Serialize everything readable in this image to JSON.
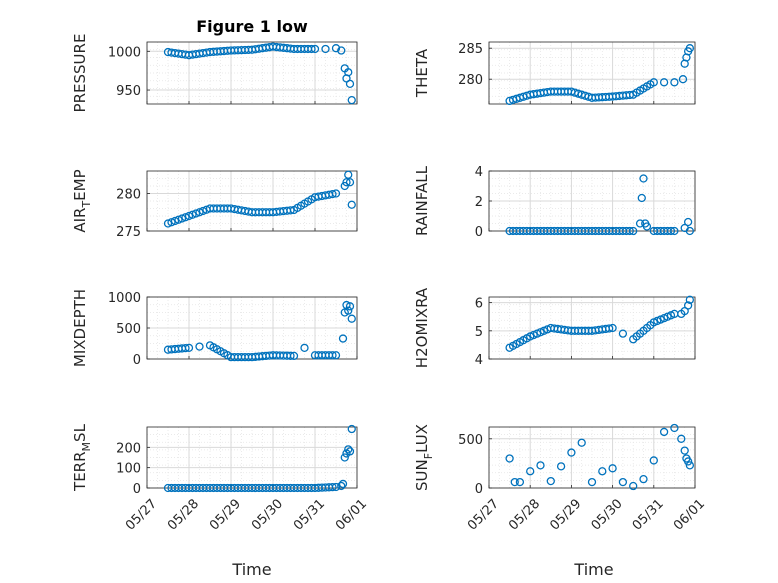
{
  "figure_title": "Figure 1 low",
  "x_axis_label": "Time",
  "colors": {
    "marker": "#0072BD",
    "axis": "#262626",
    "grid": "#d9d9d9"
  },
  "x_tick_labels": [
    "05/27",
    "05/28",
    "05/29",
    "05/30",
    "05/31",
    "06/01"
  ],
  "chart_data": [
    {
      "type": "scatter",
      "id": "pressure",
      "ylabel_main": "PRESSURE",
      "ylabel_sub": "",
      "yticks": [
        950,
        1000
      ],
      "ylim": [
        932,
        1012
      ],
      "x_domain": [
        "05/27",
        "06/01"
      ],
      "x_ticklabels_shown": false,
      "grid": true,
      "series": [
        {
          "x": [
            "2024-05-27T12:00",
            "2024-05-28T00:00",
            "2024-05-28T12:00",
            "2024-05-29T00:00",
            "2024-05-29T12:00",
            "2024-05-30T00:00",
            "2024-05-30T12:00",
            "2024-05-31T00:00",
            "2024-05-31T06:00",
            "2024-05-31T12:00",
            "2024-05-31T15:00",
            "2024-05-31T17:00",
            "2024-05-31T18:00",
            "2024-05-31T19:00",
            "2024-05-31T20:00",
            "2024-05-31T21:00"
          ],
          "y": [
            999,
            995,
            999,
            1001,
            1002,
            1006,
            1003,
            1003,
            1003,
            1004,
            1001,
            978,
            965,
            973,
            958,
            937
          ]
        }
      ]
    },
    {
      "type": "scatter",
      "id": "theta",
      "ylabel_main": "THETA",
      "ylabel_sub": "",
      "yticks": [
        280,
        285
      ],
      "ylim": [
        276,
        286
      ],
      "x_domain": [
        "05/27",
        "06/01"
      ],
      "x_ticklabels_shown": false,
      "grid": true,
      "series": [
        {
          "x": [
            "2024-05-27T12:00",
            "2024-05-28T00:00",
            "2024-05-28T12:00",
            "2024-05-29T00:00",
            "2024-05-29T12:00",
            "2024-05-30T00:00",
            "2024-05-30T12:00",
            "2024-05-31T00:00",
            "2024-05-31T06:00",
            "2024-05-31T12:00",
            "2024-05-31T17:00",
            "2024-05-31T18:00",
            "2024-05-31T19:00",
            "2024-05-31T20:00",
            "2024-05-31T21:00"
          ],
          "y": [
            276.5,
            277.5,
            278,
            278,
            277,
            277.2,
            277.5,
            279.5,
            279.5,
            279.5,
            280,
            282.5,
            283.5,
            284.5,
            285
          ]
        }
      ]
    },
    {
      "type": "scatter",
      "id": "air_temp",
      "ylabel_main": "AIR",
      "ylabel_sub": "T",
      "ylabel_end": "EMP",
      "yticks": [
        275,
        280
      ],
      "ylim": [
        275,
        283
      ],
      "x_domain": [
        "05/27",
        "06/01"
      ],
      "x_ticklabels_shown": false,
      "grid": true,
      "series": [
        {
          "x": [
            "2024-05-27T12:00",
            "2024-05-28T00:00",
            "2024-05-28T12:00",
            "2024-05-29T00:00",
            "2024-05-29T12:00",
            "2024-05-30T00:00",
            "2024-05-30T12:00",
            "2024-05-31T00:00",
            "2024-05-31T12:00",
            "2024-05-31T17:00",
            "2024-05-31T18:00",
            "2024-05-31T19:00",
            "2024-05-31T20:00",
            "2024-05-31T21:00"
          ],
          "y": [
            276,
            277,
            278,
            278,
            277.5,
            277.5,
            277.8,
            279.5,
            280,
            281,
            281.5,
            282.5,
            281.5,
            278.5
          ]
        }
      ]
    },
    {
      "type": "scatter",
      "id": "rainfall",
      "ylabel_main": "RAINFALL",
      "ylabel_sub": "",
      "yticks": [
        0,
        2,
        4
      ],
      "ylim": [
        0,
        4
      ],
      "x_domain": [
        "05/27",
        "06/01"
      ],
      "x_ticklabels_shown": false,
      "grid": true,
      "series": [
        {
          "x": [
            "2024-05-27T12:00",
            "2024-05-28T00:00",
            "2024-05-28T12:00",
            "2024-05-29T00:00",
            "2024-05-29T12:00",
            "2024-05-30T00:00",
            "2024-05-30T12:00",
            "2024-05-30T16:00",
            "2024-05-30T17:00",
            "2024-05-30T18:00",
            "2024-05-30T19:00",
            "2024-05-30T20:00",
            "2024-05-31T00:00",
            "2024-05-31T12:00",
            "2024-05-31T18:00",
            "2024-05-31T20:00",
            "2024-05-31T21:00"
          ],
          "y": [
            0,
            0,
            0,
            0,
            0,
            0,
            0,
            0.5,
            2.2,
            3.5,
            0.5,
            0.3,
            0,
            0,
            0.2,
            0.6,
            0
          ]
        }
      ]
    },
    {
      "type": "scatter",
      "id": "mixdepth",
      "ylabel_main": "MIXDEPTH",
      "ylabel_sub": "",
      "yticks": [
        0,
        500,
        1000
      ],
      "ylim": [
        0,
        1000
      ],
      "x_domain": [
        "05/27",
        "06/01"
      ],
      "x_ticklabels_shown": false,
      "grid": true,
      "series": [
        {
          "x": [
            "2024-05-27T12:00",
            "2024-05-28T00:00",
            "2024-05-28T06:00",
            "2024-05-28T12:00",
            "2024-05-29T00:00",
            "2024-05-29T12:00",
            "2024-05-30T00:00",
            "2024-05-30T12:00",
            "2024-05-30T18:00",
            "2024-05-31T00:00",
            "2024-05-31T12:00",
            "2024-05-31T16:00",
            "2024-05-31T17:00",
            "2024-05-31T18:00",
            "2024-05-31T19:00",
            "2024-05-31T20:00",
            "2024-05-31T21:00"
          ],
          "y": [
            150,
            180,
            200,
            220,
            30,
            30,
            60,
            50,
            180,
            60,
            60,
            330,
            750,
            870,
            780,
            850,
            650
          ]
        }
      ]
    },
    {
      "type": "scatter",
      "id": "h2omixra",
      "ylabel_main": "H2OMIXRA",
      "ylabel_sub": "",
      "yticks": [
        4,
        5,
        6
      ],
      "ylim": [
        4,
        6.2
      ],
      "x_domain": [
        "05/27",
        "06/01"
      ],
      "x_ticklabels_shown": false,
      "grid": true,
      "series": [
        {
          "x": [
            "2024-05-27T12:00",
            "2024-05-28T00:00",
            "2024-05-28T12:00",
            "2024-05-29T00:00",
            "2024-05-29T12:00",
            "2024-05-30T00:00",
            "2024-05-30T06:00",
            "2024-05-30T12:00",
            "2024-05-31T00:00",
            "2024-05-31T12:00",
            "2024-05-31T16:00",
            "2024-05-31T18:00",
            "2024-05-31T20:00",
            "2024-05-31T21:00"
          ],
          "y": [
            4.4,
            4.8,
            5.1,
            5.0,
            5.0,
            5.1,
            4.9,
            4.7,
            5.3,
            5.6,
            5.6,
            5.7,
            5.9,
            6.1
          ]
        }
      ]
    },
    {
      "type": "scatter",
      "id": "terr_msl",
      "ylabel_main": "TERR",
      "ylabel_sub": "M",
      "ylabel_end": "SL",
      "yticks": [
        0,
        100,
        200
      ],
      "ylim": [
        0,
        300
      ],
      "x_domain": [
        "05/27",
        "06/01"
      ],
      "x_ticklabels_shown": true,
      "grid": true,
      "series": [
        {
          "x": [
            "2024-05-27T12:00",
            "2024-05-28T00:00",
            "2024-05-28T12:00",
            "2024-05-29T00:00",
            "2024-05-29T12:00",
            "2024-05-30T00:00",
            "2024-05-30T12:00",
            "2024-05-31T00:00",
            "2024-05-31T12:00",
            "2024-05-31T15:00",
            "2024-05-31T16:00",
            "2024-05-31T17:00",
            "2024-05-31T18:00",
            "2024-05-31T19:00",
            "2024-05-31T20:00",
            "2024-05-31T21:00"
          ],
          "y": [
            0,
            0,
            0,
            0,
            0,
            0,
            0,
            0,
            5,
            10,
            20,
            150,
            170,
            190,
            180,
            290
          ]
        }
      ]
    },
    {
      "type": "scatter",
      "id": "sun_flux",
      "ylabel_main": "SUN",
      "ylabel_sub": "F",
      "ylabel_end": "LUX",
      "yticks": [
        0,
        500
      ],
      "ylim": [
        0,
        620
      ],
      "x_domain": [
        "05/27",
        "06/01"
      ],
      "x_ticklabels_shown": true,
      "grid": true,
      "series": [
        {
          "x": [
            "2024-05-27T12:00",
            "2024-05-27T15:00",
            "2024-05-27T18:00",
            "2024-05-28T00:00",
            "2024-05-28T06:00",
            "2024-05-28T12:00",
            "2024-05-28T18:00",
            "2024-05-29T00:00",
            "2024-05-29T06:00",
            "2024-05-29T12:00",
            "2024-05-29T18:00",
            "2024-05-30T00:00",
            "2024-05-30T06:00",
            "2024-05-30T12:00",
            "2024-05-30T18:00",
            "2024-05-31T00:00",
            "2024-05-31T06:00",
            "2024-05-31T12:00",
            "2024-05-31T16:00",
            "2024-05-31T18:00",
            "2024-05-31T19:00",
            "2024-05-31T20:00",
            "2024-05-31T21:00"
          ],
          "y": [
            300,
            60,
            60,
            170,
            230,
            70,
            220,
            360,
            460,
            60,
            170,
            200,
            60,
            20,
            90,
            280,
            570,
            610,
            500,
            380,
            300,
            270,
            230
          ]
        }
      ]
    }
  ]
}
